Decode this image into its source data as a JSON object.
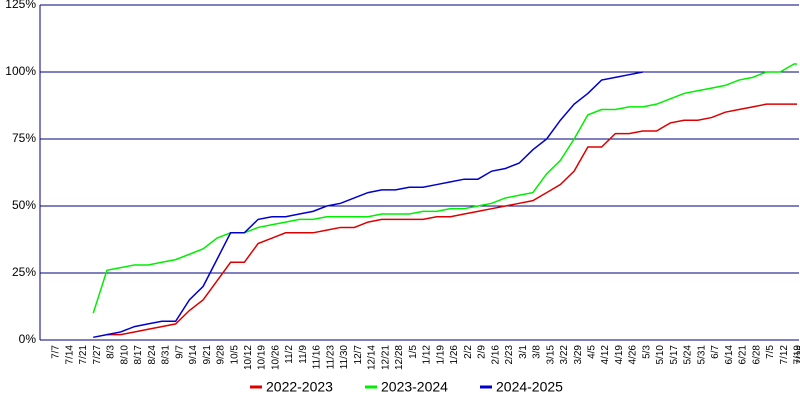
{
  "chart_data": {
    "type": "line",
    "categories": [
      "7/7",
      "7/14",
      "7/21",
      "7/27",
      "8/3",
      "8/10",
      "8/17",
      "8/24",
      "8/31",
      "9/7",
      "9/14",
      "9/21",
      "9/28",
      "10/5",
      "10/12",
      "10/19",
      "10/26",
      "11/2",
      "11/9",
      "11/16",
      "11/23",
      "11/30",
      "12/7",
      "12/14",
      "12/21",
      "12/28",
      "1/5",
      "1/12",
      "1/19",
      "1/26",
      "2/2",
      "2/9",
      "2/16",
      "2/23",
      "3/1",
      "3/8",
      "3/15",
      "3/22",
      "3/29",
      "4/5",
      "4/12",
      "4/19",
      "4/26",
      "5/3",
      "5/10",
      "5/17",
      "5/24",
      "5/31",
      "6/7",
      "6/14",
      "6/21",
      "6/28",
      "7/5",
      "7/12",
      "7/19",
      "7/26"
    ],
    "series": [
      {
        "name": "2022-2023",
        "color": "#dd0000",
        "values": [
          null,
          null,
          null,
          null,
          2,
          2,
          3,
          4,
          5,
          6,
          11,
          15,
          22,
          29,
          29,
          36,
          38,
          40,
          40,
          40,
          41,
          42,
          42,
          44,
          45,
          45,
          45,
          45,
          46,
          46,
          47,
          48,
          49,
          50,
          51,
          52,
          55,
          58,
          63,
          72,
          72,
          77,
          77,
          78,
          78,
          81,
          82,
          82,
          83,
          85,
          86,
          87,
          88,
          88,
          88,
          88
        ]
      },
      {
        "name": "2023-2024",
        "color": "#00ee00",
        "values": [
          null,
          null,
          null,
          10,
          26,
          27,
          28,
          28,
          29,
          30,
          32,
          34,
          38,
          40,
          40,
          42,
          43,
          44,
          45,
          45,
          46,
          46,
          46,
          46,
          47,
          47,
          47,
          48,
          48,
          49,
          49,
          50,
          51,
          53,
          54,
          55,
          62,
          67,
          75,
          84,
          86,
          86,
          87,
          87,
          88,
          90,
          92,
          93,
          94,
          95,
          97,
          98,
          100,
          100,
          103,
          103
        ]
      },
      {
        "name": "2024-2025",
        "color": "#0000cc",
        "values": [
          null,
          null,
          null,
          1,
          2,
          3,
          5,
          6,
          7,
          7,
          15,
          20,
          30,
          40,
          40,
          45,
          46,
          46,
          47,
          48,
          50,
          51,
          53,
          55,
          56,
          56,
          57,
          57,
          58,
          59,
          60,
          60,
          63,
          64,
          66,
          71,
          75,
          82,
          88,
          92,
          97,
          98,
          99,
          100,
          null,
          null,
          null,
          null,
          null,
          null,
          null,
          null,
          null,
          null,
          null,
          null
        ]
      }
    ],
    "ylim": [
      0,
      125
    ],
    "yticks": [
      {
        "value": 0,
        "label": "0%"
      },
      {
        "value": 25,
        "label": "25%"
      },
      {
        "value": 50,
        "label": "50%"
      },
      {
        "value": 75,
        "label": "75%"
      },
      {
        "value": 100,
        "label": "100%"
      },
      {
        "value": 125,
        "label": "125%"
      }
    ],
    "grid": true,
    "legend": "bottom"
  }
}
